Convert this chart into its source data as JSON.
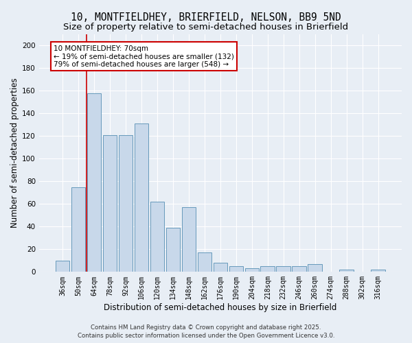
{
  "title_line1": "10, MONTFIELDHEY, BRIERFIELD, NELSON, BB9 5ND",
  "title_line2": "Size of property relative to semi-detached houses in Brierfield",
  "xlabel": "Distribution of semi-detached houses by size in Brierfield",
  "ylabel": "Number of semi-detached properties",
  "categories": [
    "36sqm",
    "50sqm",
    "64sqm",
    "78sqm",
    "92sqm",
    "106sqm",
    "120sqm",
    "134sqm",
    "148sqm",
    "162sqm",
    "176sqm",
    "190sqm",
    "204sqm",
    "218sqm",
    "232sqm",
    "246sqm",
    "260sqm",
    "274sqm",
    "288sqm",
    "302sqm",
    "316sqm"
  ],
  "values": [
    10,
    75,
    158,
    121,
    121,
    131,
    62,
    39,
    57,
    17,
    8,
    5,
    3,
    5,
    5,
    5,
    7,
    0,
    2,
    0,
    2
  ],
  "bar_color": "#c8d8ea",
  "bar_edge_color": "#6699bb",
  "annotation_line1": "10 MONTFIELDHEY: 70sqm",
  "annotation_line2": "← 19% of semi-detached houses are smaller (132)",
  "annotation_line3": "79% of semi-detached houses are larger (548) →",
  "vline_x": 1.5,
  "annotation_box_color": "#ffffff",
  "annotation_box_edge": "#cc0000",
  "vline_color": "#cc0000",
  "footer1": "Contains HM Land Registry data © Crown copyright and database right 2025.",
  "footer2": "Contains public sector information licensed under the Open Government Licence v3.0.",
  "ylim": [
    0,
    210
  ],
  "yticks": [
    0,
    20,
    40,
    60,
    80,
    100,
    120,
    140,
    160,
    180,
    200
  ],
  "bg_color": "#e8eef5",
  "grid_color": "#ffffff",
  "title_fontsize": 10.5,
  "subtitle_fontsize": 9.5,
  "ylabel_fontsize": 8.5,
  "xlabel_fontsize": 8.5,
  "tick_fontsize": 7,
  "annot_fontsize": 7.5,
  "footer_fontsize": 6.2
}
